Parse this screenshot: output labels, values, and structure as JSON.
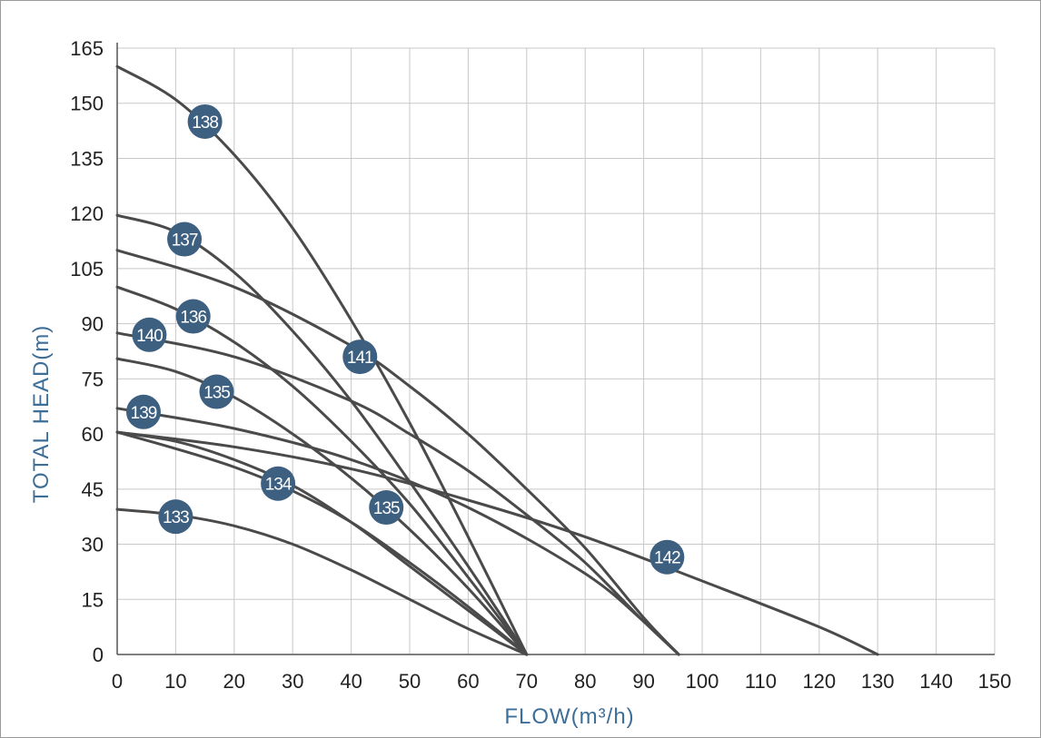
{
  "chart_data": {
    "type": "line",
    "title": "",
    "xlabel": "FLOW(m³/h)",
    "ylabel": "TOTAL HEAD(m)",
    "xlim": [
      0,
      150
    ],
    "ylim": [
      0,
      165
    ],
    "x_ticks": [
      0,
      10,
      20,
      30,
      40,
      50,
      60,
      70,
      80,
      90,
      100,
      110,
      120,
      130,
      140,
      150
    ],
    "y_ticks": [
      0,
      15,
      30,
      45,
      60,
      75,
      90,
      105,
      120,
      135,
      150,
      165
    ],
    "grid": true,
    "legend": "none",
    "colors": {
      "curve": "#4a4a4a",
      "badge": "#3d5f80",
      "axis_label": "#3d6e98",
      "grid": "#c8c8c8"
    },
    "series": [
      {
        "name": "138",
        "x": [
          0,
          10,
          20,
          30,
          40,
          50,
          60,
          70
        ],
        "y": [
          160,
          151,
          136,
          116,
          91,
          63,
          32,
          0
        ],
        "label_at": [
          15,
          145
        ]
      },
      {
        "name": "137",
        "x": [
          0,
          10,
          20,
          30,
          40,
          50,
          60,
          70
        ],
        "y": [
          119.5,
          115,
          104,
          88,
          69,
          47,
          24,
          0
        ],
        "label_at": [
          11.5,
          113
        ]
      },
      {
        "name": "141",
        "x": [
          0,
          20,
          40,
          50,
          60,
          70,
          80,
          90,
          96
        ],
        "y": [
          110,
          100,
          84,
          73,
          60,
          45,
          29,
          10,
          0
        ],
        "label_at": [
          41.5,
          81
        ]
      },
      {
        "name": "136",
        "x": [
          0,
          10,
          20,
          30,
          40,
          50,
          60,
          70
        ],
        "y": [
          100,
          94,
          85,
          73,
          58,
          41,
          21,
          0
        ],
        "label_at": [
          13,
          92
        ]
      },
      {
        "name": "140",
        "x": [
          0,
          20,
          40,
          50,
          60,
          70,
          80,
          90,
          96
        ],
        "y": [
          87.5,
          81,
          69,
          60,
          50,
          38,
          25,
          9,
          0
        ],
        "label_at": [
          5.5,
          87
        ]
      },
      {
        "name": "135",
        "x": [
          0,
          10,
          20,
          30,
          40,
          50,
          60,
          70
        ],
        "y": [
          80.5,
          77,
          70,
          60,
          48,
          34,
          18,
          0
        ],
        "label_at": [
          17,
          71.5
        ]
      },
      {
        "name": "139",
        "x": [
          0,
          20,
          40,
          60,
          80,
          90,
          96
        ],
        "y": [
          67,
          61.5,
          53,
          40,
          22,
          9,
          0
        ],
        "label_at": [
          4.5,
          66
        ]
      },
      {
        "name": "142",
        "x": [
          0,
          20,
          40,
          60,
          80,
          100,
          120,
          130
        ],
        "y": [
          60.5,
          56.5,
          50.5,
          42,
          32,
          20,
          7.5,
          0
        ],
        "label_at": [
          94,
          26.5
        ]
      },
      {
        "name": "135",
        "x": [
          0,
          10,
          20,
          30,
          40,
          50,
          60,
          70
        ],
        "y": [
          60.5,
          58,
          53,
          46,
          36,
          24,
          12,
          0
        ],
        "label_at": [
          46,
          40
        ]
      },
      {
        "name": "134",
        "x": [
          0,
          10,
          20,
          30,
          40,
          50,
          60,
          70
        ],
        "y": [
          60.5,
          56,
          51,
          44.5,
          36,
          25,
          13,
          0
        ],
        "label_at": [
          27.5,
          46.5
        ]
      },
      {
        "name": "133",
        "x": [
          0,
          10,
          20,
          30,
          40,
          50,
          60,
          70
        ],
        "y": [
          39.5,
          38,
          35,
          30,
          23,
          15,
          7,
          0
        ],
        "label_at": [
          10,
          37.5
        ]
      }
    ]
  }
}
